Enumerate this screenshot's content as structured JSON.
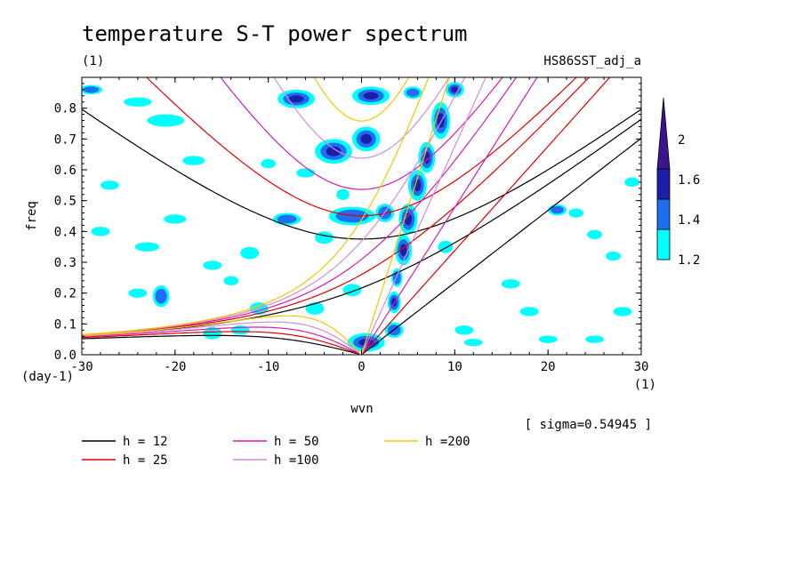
{
  "chart_data": {
    "type": "heatmap",
    "title": "temperature S-T power spectrum",
    "units_left": "(1)",
    "dataset": "HS86SST_adj_a",
    "xlabel": "wvn",
    "ylabel": "freq",
    "x_units": "(1)",
    "y_units": "(day-1)",
    "xlim": [
      -30,
      30
    ],
    "ylim": [
      0,
      0.9
    ],
    "xticks": [
      "-30",
      "-20",
      "-10",
      "0",
      "10",
      "20",
      "30"
    ],
    "yticks": [
      "0.0",
      "0.1",
      "0.2",
      "0.3",
      "0.4",
      "0.5",
      "0.6",
      "0.7",
      "0.8"
    ],
    "sigma_note": "[ sigma=0.54945 ]",
    "colorbar": {
      "levels": [
        "1.2",
        "1.4",
        "1.6",
        "2"
      ],
      "colors": [
        "#00ffff",
        "#1e6ef0",
        "#1e1ea8",
        "#3c1490"
      ]
    },
    "dispersion_curves": [
      {
        "label": "h = 12",
        "h": 12,
        "color": "#000000"
      },
      {
        "label": "h = 25",
        "h": 25,
        "color": "#e00000"
      },
      {
        "label": "h = 50",
        "h": 50,
        "color": "#d21eb4"
      },
      {
        "label": "h =100",
        "h": 100,
        "color": "#d28cdc"
      },
      {
        "label": "h =200",
        "h": 200,
        "color": "#f0c800"
      }
    ],
    "significant_regions": [
      {
        "x": 0.5,
        "y": 0.04,
        "rx": 2.0,
        "ry": 0.03,
        "level": 3
      },
      {
        "x": 3.5,
        "y": 0.08,
        "rx": 1.0,
        "ry": 0.025,
        "level": 2
      },
      {
        "x": 3.5,
        "y": 0.17,
        "rx": 0.7,
        "ry": 0.035,
        "level": 3
      },
      {
        "x": 3.8,
        "y": 0.25,
        "rx": 0.6,
        "ry": 0.03,
        "level": 2
      },
      {
        "x": 4.5,
        "y": 0.34,
        "rx": 0.9,
        "ry": 0.05,
        "level": 3
      },
      {
        "x": 5.0,
        "y": 0.44,
        "rx": 1.0,
        "ry": 0.05,
        "level": 3
      },
      {
        "x": 6.0,
        "y": 0.55,
        "rx": 1.0,
        "ry": 0.05,
        "level": 3
      },
      {
        "x": 7.0,
        "y": 0.64,
        "rx": 0.9,
        "ry": 0.05,
        "level": 3
      },
      {
        "x": 8.5,
        "y": 0.76,
        "rx": 1.0,
        "ry": 0.06,
        "level": 3
      },
      {
        "x": 10.0,
        "y": 0.86,
        "rx": 1.0,
        "ry": 0.025,
        "level": 3
      },
      {
        "x": 5.5,
        "y": 0.85,
        "rx": 1.0,
        "ry": 0.02,
        "level": 2
      },
      {
        "x": -3.0,
        "y": 0.66,
        "rx": 2.0,
        "ry": 0.04,
        "level": 3
      },
      {
        "x": 0.5,
        "y": 0.7,
        "rx": 1.5,
        "ry": 0.04,
        "level": 3
      },
      {
        "x": 1.0,
        "y": 0.84,
        "rx": 2.0,
        "ry": 0.03,
        "level": 3
      },
      {
        "x": -7.0,
        "y": 0.83,
        "rx": 2.0,
        "ry": 0.03,
        "level": 3
      },
      {
        "x": -1.0,
        "y": 0.45,
        "rx": 2.5,
        "ry": 0.03,
        "level": 2
      },
      {
        "x": 2.5,
        "y": 0.46,
        "rx": 1.0,
        "ry": 0.03,
        "level": 2
      },
      {
        "x": -8.0,
        "y": 0.44,
        "rx": 1.5,
        "ry": 0.02,
        "level": 2
      },
      {
        "x": -2.0,
        "y": 0.52,
        "rx": 0.7,
        "ry": 0.018,
        "level": 1
      },
      {
        "x": -21.0,
        "y": 0.76,
        "rx": 2.0,
        "ry": 0.02,
        "level": 1
      },
      {
        "x": -24.0,
        "y": 0.82,
        "rx": 1.5,
        "ry": 0.015,
        "level": 1
      },
      {
        "x": -29.0,
        "y": 0.86,
        "rx": 1.2,
        "ry": 0.015,
        "level": 2
      },
      {
        "x": -23.0,
        "y": 0.35,
        "rx": 1.3,
        "ry": 0.015,
        "level": 1
      },
      {
        "x": -24.0,
        "y": 0.2,
        "rx": 1.0,
        "ry": 0.015,
        "level": 1
      },
      {
        "x": -21.5,
        "y": 0.19,
        "rx": 0.9,
        "ry": 0.035,
        "level": 2
      },
      {
        "x": -20.0,
        "y": 0.44,
        "rx": 1.2,
        "ry": 0.015,
        "level": 1
      },
      {
        "x": -16.0,
        "y": 0.07,
        "rx": 1.0,
        "ry": 0.02,
        "level": 1
      },
      {
        "x": -12.0,
        "y": 0.33,
        "rx": 1.0,
        "ry": 0.02,
        "level": 1
      },
      {
        "x": -11.0,
        "y": 0.15,
        "rx": 1.0,
        "ry": 0.02,
        "level": 1
      },
      {
        "x": -5.0,
        "y": 0.15,
        "rx": 1.0,
        "ry": 0.02,
        "level": 1
      },
      {
        "x": -1.0,
        "y": 0.21,
        "rx": 1.0,
        "ry": 0.02,
        "level": 1
      },
      {
        "x": -16.0,
        "y": 0.29,
        "rx": 1.0,
        "ry": 0.015,
        "level": 1
      },
      {
        "x": -28.0,
        "y": 0.4,
        "rx": 1.0,
        "ry": 0.015,
        "level": 1
      },
      {
        "x": -27.0,
        "y": 0.55,
        "rx": 1.0,
        "ry": 0.015,
        "level": 1
      },
      {
        "x": -18.0,
        "y": 0.63,
        "rx": 1.2,
        "ry": 0.015,
        "level": 1
      },
      {
        "x": -14.0,
        "y": 0.24,
        "rx": 0.8,
        "ry": 0.015,
        "level": 1
      },
      {
        "x": -13.0,
        "y": 0.08,
        "rx": 1.0,
        "ry": 0.015,
        "level": 1
      },
      {
        "x": 11.0,
        "y": 0.08,
        "rx": 1.0,
        "ry": 0.015,
        "level": 1
      },
      {
        "x": 16.0,
        "y": 0.23,
        "rx": 1.0,
        "ry": 0.015,
        "level": 1
      },
      {
        "x": 18.0,
        "y": 0.14,
        "rx": 1.0,
        "ry": 0.015,
        "level": 1
      },
      {
        "x": 21.0,
        "y": 0.47,
        "rx": 1.0,
        "ry": 0.018,
        "level": 2
      },
      {
        "x": 23.0,
        "y": 0.46,
        "rx": 0.8,
        "ry": 0.015,
        "level": 1
      },
      {
        "x": 25.0,
        "y": 0.39,
        "rx": 0.8,
        "ry": 0.015,
        "level": 1
      },
      {
        "x": 27.0,
        "y": 0.32,
        "rx": 0.8,
        "ry": 0.015,
        "level": 1
      },
      {
        "x": 28.0,
        "y": 0.14,
        "rx": 1.0,
        "ry": 0.015,
        "level": 1
      },
      {
        "x": 29.0,
        "y": 0.56,
        "rx": 0.8,
        "ry": 0.015,
        "level": 1
      },
      {
        "x": 12.0,
        "y": 0.04,
        "rx": 1.0,
        "ry": 0.012,
        "level": 1
      },
      {
        "x": 20.0,
        "y": 0.05,
        "rx": 1.0,
        "ry": 0.012,
        "level": 1
      },
      {
        "x": 25.0,
        "y": 0.05,
        "rx": 1.0,
        "ry": 0.012,
        "level": 1
      },
      {
        "x": -6.0,
        "y": 0.59,
        "rx": 1.0,
        "ry": 0.015,
        "level": 1
      },
      {
        "x": -10.0,
        "y": 0.62,
        "rx": 0.8,
        "ry": 0.015,
        "level": 1
      },
      {
        "x": 9.0,
        "y": 0.35,
        "rx": 0.8,
        "ry": 0.02,
        "level": 1
      },
      {
        "x": -4.0,
        "y": 0.38,
        "rx": 1.0,
        "ry": 0.02,
        "level": 1
      }
    ]
  }
}
